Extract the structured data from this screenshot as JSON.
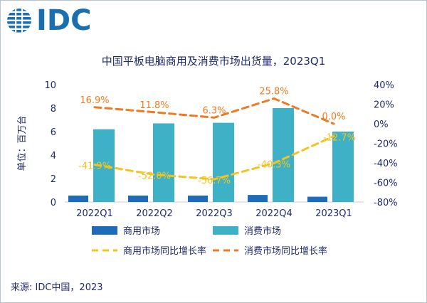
{
  "logo": {
    "text": "IDC"
  },
  "source": "来源: IDC中国，2023",
  "chart_data": {
    "type": "bar",
    "title": "中国平板电脑商用及消费市场出货量，2023Q1",
    "ylabel": "单位：百万台",
    "categories": [
      "2022Q1",
      "2022Q2",
      "2022Q3",
      "2022Q4",
      "2023Q1"
    ],
    "ylim": [
      0,
      10
    ],
    "y_ticks": [
      "0",
      "2",
      "4",
      "6",
      "8",
      "10"
    ],
    "y2lim": [
      -80,
      40
    ],
    "y2_ticks": [
      "40%",
      "20%",
      "0%",
      "-20%",
      "-40%",
      "-60%",
      "-80%"
    ],
    "series": [
      {
        "name": "商用市场",
        "kind": "bar",
        "color": "#1e6bb8",
        "values": [
          0.55,
          0.55,
          0.55,
          0.6,
          0.45
        ]
      },
      {
        "name": "消费市场",
        "kind": "bar",
        "color": "#3fb1c6",
        "values": [
          6.2,
          6.7,
          6.75,
          8.0,
          6.0
        ]
      },
      {
        "name": "商用市场同比增长率",
        "kind": "line",
        "axis": "right",
        "color": "#f3c41f",
        "values": [
          -41.9,
          -52.0,
          -56.7,
          -40.3,
          -12.7
        ],
        "labels": [
          "-41.9%",
          "-52.0%",
          "-56.7%",
          "-40.3%",
          "-12.7%"
        ]
      },
      {
        "name": "消费市场同比增长率",
        "kind": "line",
        "axis": "right",
        "color": "#f07a22",
        "values": [
          16.9,
          11.8,
          6.3,
          25.8,
          0.0
        ],
        "labels": [
          "16.9%",
          "11.8%",
          "6.3%",
          "25.8%",
          "0.0%"
        ]
      }
    ],
    "legend": "bottom",
    "grid": false
  }
}
